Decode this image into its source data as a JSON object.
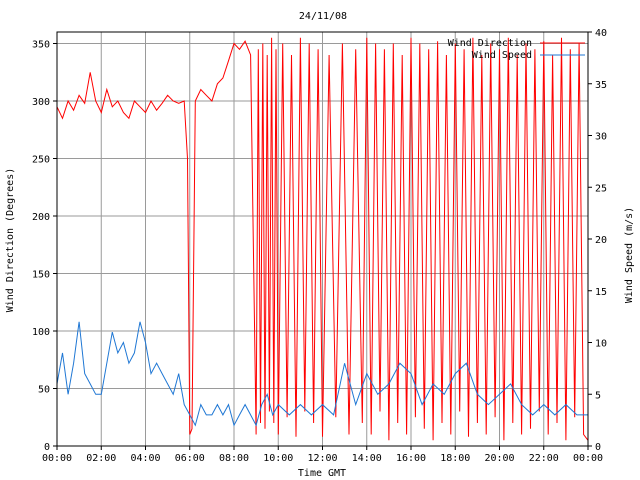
{
  "chart_data": {
    "type": "line",
    "title": "24/11/08",
    "xlabel": "Time GMT",
    "ylabel_left": "Wind Direction (Degrees)",
    "ylabel_right": "Wind Speed (m/s)",
    "x_ticks": [
      "00:00",
      "02:00",
      "04:00",
      "06:00",
      "08:00",
      "10:00",
      "12:00",
      "14:00",
      "16:00",
      "18:00",
      "20:00",
      "22:00",
      "00:00"
    ],
    "x_range_hours": [
      0,
      24
    ],
    "y_left_range": [
      0,
      360
    ],
    "y_left_ticks": [
      "0",
      "50",
      "100",
      "150",
      "200",
      "250",
      "300",
      "350"
    ],
    "y_right_range": [
      0,
      40
    ],
    "y_right_ticks": [
      "0",
      "5",
      "10",
      "15",
      "20",
      "25",
      "30",
      "35",
      "40"
    ],
    "grid": true,
    "legend_position": "top-right",
    "series": [
      {
        "name": "Wind Direction",
        "axis": "left",
        "color": "#ff0000",
        "x": [
          0.0,
          0.25,
          0.5,
          0.75,
          1.0,
          1.25,
          1.5,
          1.75,
          2.0,
          2.25,
          2.5,
          2.75,
          3.0,
          3.25,
          3.5,
          3.75,
          4.0,
          4.25,
          4.5,
          4.75,
          5.0,
          5.25,
          5.5,
          5.75,
          5.9,
          6.0,
          6.1,
          6.25,
          6.5,
          6.75,
          7.0,
          7.25,
          7.5,
          7.75,
          8.0,
          8.25,
          8.5,
          8.75,
          9.0,
          9.1,
          9.2,
          9.3,
          9.4,
          9.5,
          9.6,
          9.7,
          9.8,
          9.9,
          10.0,
          10.2,
          10.4,
          10.6,
          10.8,
          11.0,
          11.2,
          11.4,
          11.6,
          11.8,
          12.0,
          12.3,
          12.6,
          12.9,
          13.2,
          13.5,
          13.8,
          14.0,
          14.2,
          14.4,
          14.6,
          14.8,
          15.0,
          15.2,
          15.4,
          15.6,
          15.8,
          16.0,
          16.2,
          16.4,
          16.6,
          16.8,
          17.0,
          17.2,
          17.4,
          17.6,
          17.8,
          18.0,
          18.2,
          18.4,
          18.6,
          18.8,
          19.0,
          19.2,
          19.4,
          19.6,
          19.8,
          20.0,
          20.2,
          20.4,
          20.6,
          20.8,
          21.0,
          21.2,
          21.4,
          21.6,
          21.8,
          22.0,
          22.2,
          22.4,
          22.6,
          22.8,
          23.0,
          23.2,
          23.4,
          23.6,
          23.8,
          24.0
        ],
        "values": [
          295,
          285,
          300,
          292,
          305,
          298,
          325,
          300,
          290,
          310,
          295,
          300,
          290,
          285,
          300,
          295,
          290,
          300,
          292,
          298,
          305,
          300,
          298,
          300,
          250,
          10,
          15,
          300,
          310,
          305,
          300,
          315,
          320,
          335,
          350,
          345,
          352,
          340,
          10,
          345,
          20,
          350,
          15,
          340,
          30,
          355,
          20,
          345,
          10,
          350,
          25,
          340,
          8,
          355,
          30,
          350,
          20,
          345,
          8,
          340,
          25,
          350,
          10,
          345,
          20,
          355,
          10,
          350,
          30,
          345,
          5,
          350,
          20,
          340,
          10,
          355,
          25,
          350,
          15,
          345,
          5,
          352,
          20,
          340,
          10,
          350,
          30,
          345,
          8,
          355,
          20,
          340,
          10,
          350,
          25,
          345,
          5,
          355,
          20,
          340,
          10,
          350,
          15,
          345,
          30,
          352,
          10,
          340,
          20,
          355,
          5,
          345,
          25,
          350,
          10,
          5
        ]
      },
      {
        "name": "Wind Speed",
        "axis": "right",
        "color": "#1f77d4",
        "x": [
          0.0,
          0.25,
          0.5,
          0.75,
          1.0,
          1.25,
          1.5,
          1.75,
          2.0,
          2.25,
          2.5,
          2.75,
          3.0,
          3.25,
          3.5,
          3.75,
          4.0,
          4.25,
          4.5,
          4.75,
          5.0,
          5.25,
          5.5,
          5.75,
          6.0,
          6.25,
          6.5,
          6.75,
          7.0,
          7.25,
          7.5,
          7.75,
          8.0,
          8.25,
          8.5,
          8.75,
          9.0,
          9.25,
          9.5,
          9.75,
          10.0,
          10.5,
          11.0,
          11.5,
          12.0,
          12.5,
          13.0,
          13.5,
          14.0,
          14.5,
          15.0,
          15.5,
          16.0,
          16.5,
          17.0,
          17.5,
          18.0,
          18.5,
          19.0,
          19.5,
          20.0,
          20.5,
          21.0,
          21.5,
          22.0,
          22.5,
          23.0,
          23.5,
          24.0
        ],
        "values": [
          6,
          9,
          5,
          8,
          12,
          7,
          6,
          5,
          5,
          8,
          11,
          9,
          10,
          8,
          9,
          12,
          10,
          7,
          8,
          7,
          6,
          5,
          7,
          4,
          3,
          2,
          4,
          3,
          3,
          4,
          3,
          4,
          2,
          3,
          4,
          3,
          2,
          4,
          5,
          3,
          4,
          3,
          4,
          3,
          4,
          3,
          8,
          4,
          7,
          5,
          6,
          8,
          7,
          4,
          6,
          5,
          7,
          8,
          5,
          4,
          5,
          6,
          4,
          3,
          4,
          3,
          4,
          3,
          3
        ]
      }
    ]
  }
}
